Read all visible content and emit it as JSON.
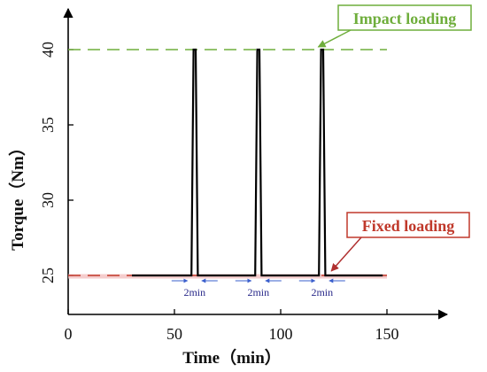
{
  "chart_data": {
    "type": "line",
    "xlabel": "Time（min）",
    "ylabel": "Torque（Nm）",
    "xlim": [
      0,
      175
    ],
    "ylim": [
      23,
      44
    ],
    "xticks": [
      0,
      50,
      100,
      150
    ],
    "yticks": [
      25,
      30,
      35,
      40
    ],
    "series": [
      {
        "type": "line",
        "color": "#000000",
        "x": [
          30,
          58,
          59,
          60,
          61,
          88,
          89,
          90,
          91,
          118,
          119,
          120,
          121,
          148
        ],
        "y": [
          25,
          25,
          40,
          40,
          25,
          25,
          40,
          40,
          25,
          25,
          40,
          40,
          25,
          25
        ]
      }
    ],
    "reference_lines": [
      {
        "y": 40,
        "style": "dashed",
        "color": "#6fae3c",
        "label": "Impact loading"
      },
      {
        "y": 25,
        "style": "dashed",
        "color": "#c0392b",
        "label": "Fixed loading"
      }
    ],
    "annotations": [
      {
        "text": "Impact loading",
        "color": "#6fae3c",
        "border": "#6fae3c",
        "points_to": [
          116,
          40
        ],
        "position": "top-right"
      },
      {
        "text": "Fixed loading",
        "color": "#c0392b",
        "border": "#c0392b",
        "points_to": [
          123,
          25
        ],
        "position": "right"
      }
    ],
    "gap_labels": [
      {
        "text": "2min",
        "x": 59.5
      },
      {
        "text": "2min",
        "x": 89.5
      },
      {
        "text": "2min",
        "x": 119.5
      }
    ],
    "grid": false
  }
}
